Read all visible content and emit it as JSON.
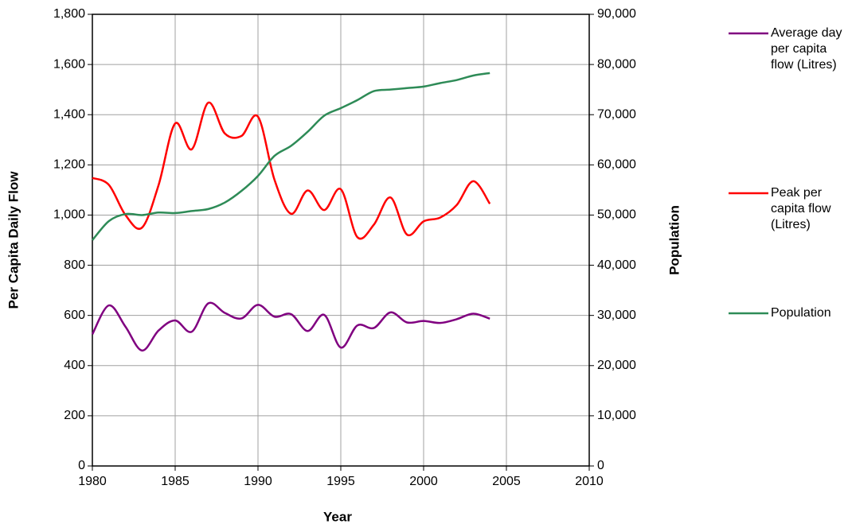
{
  "chart_data": {
    "type": "line",
    "x_label": "Year",
    "y_label": "Per Capita Daily Flow",
    "y2_label": "Population",
    "x": [
      1980,
      1981,
      1982,
      1983,
      1984,
      1985,
      1986,
      1987,
      1988,
      1989,
      1990,
      1991,
      1992,
      1993,
      1994,
      1995,
      1996,
      1997,
      1998,
      1999,
      2000,
      2001,
      2002,
      2003,
      2004
    ],
    "series": [
      {
        "name": "Average day per capita flow (Litres)",
        "color": "#800080",
        "values": [
          525,
          640,
          555,
          460,
          540,
          580,
          535,
          648,
          610,
          588,
          642,
          595,
          605,
          538,
          602,
          472,
          560,
          550,
          612,
          572,
          578,
          570,
          585,
          607,
          587
        ]
      },
      {
        "name": "Peak per capita flow (Litres)",
        "color": "#ff0000",
        "values": [
          1148,
          1120,
          1000,
          950,
          1120,
          1365,
          1262,
          1448,
          1325,
          1315,
          1392,
          1140,
          1005,
          1098,
          1020,
          1103,
          912,
          962,
          1070,
          922,
          975,
          990,
          1040,
          1135,
          1045
        ]
      },
      {
        "name": "Population",
        "color": "#2e8b57",
        "axis": "y2",
        "values": [
          45000,
          48800,
          50200,
          50000,
          50500,
          50400,
          50800,
          51200,
          52500,
          54800,
          57800,
          61800,
          63800,
          66600,
          69800,
          71300,
          72900,
          74700,
          75000,
          75300,
          75600,
          76300,
          76900,
          77800,
          78300
        ]
      }
    ],
    "xlim": [
      1980,
      2010
    ],
    "xticks": [
      1980,
      1985,
      1990,
      1995,
      2000,
      2005,
      2010
    ],
    "ylim": [
      0,
      1800
    ],
    "yticks": [
      0,
      200,
      400,
      600,
      800,
      {
        "value": 1000,
        "label": "1,000"
      },
      {
        "value": 1200,
        "label": "1,200"
      },
      {
        "value": 1400,
        "label": "1,400"
      },
      {
        "value": 1600,
        "label": "1,600"
      },
      {
        "value": 1800,
        "label": "1,800"
      }
    ],
    "y2lim": [
      0,
      90000
    ],
    "y2ticks": [
      0,
      {
        "value": 10000,
        "label": "10,000"
      },
      {
        "value": 20000,
        "label": "20,000"
      },
      {
        "value": 30000,
        "label": "30,000"
      },
      {
        "value": 40000,
        "label": "40,000"
      },
      {
        "value": 50000,
        "label": "50,000"
      },
      {
        "value": 60000,
        "label": "60,000"
      },
      {
        "value": 70000,
        "label": "70,000"
      },
      {
        "value": 80000,
        "label": "80,000"
      },
      {
        "value": 90000,
        "label": "90,000"
      }
    ],
    "grid": true,
    "smooth": true,
    "legend": "right"
  }
}
